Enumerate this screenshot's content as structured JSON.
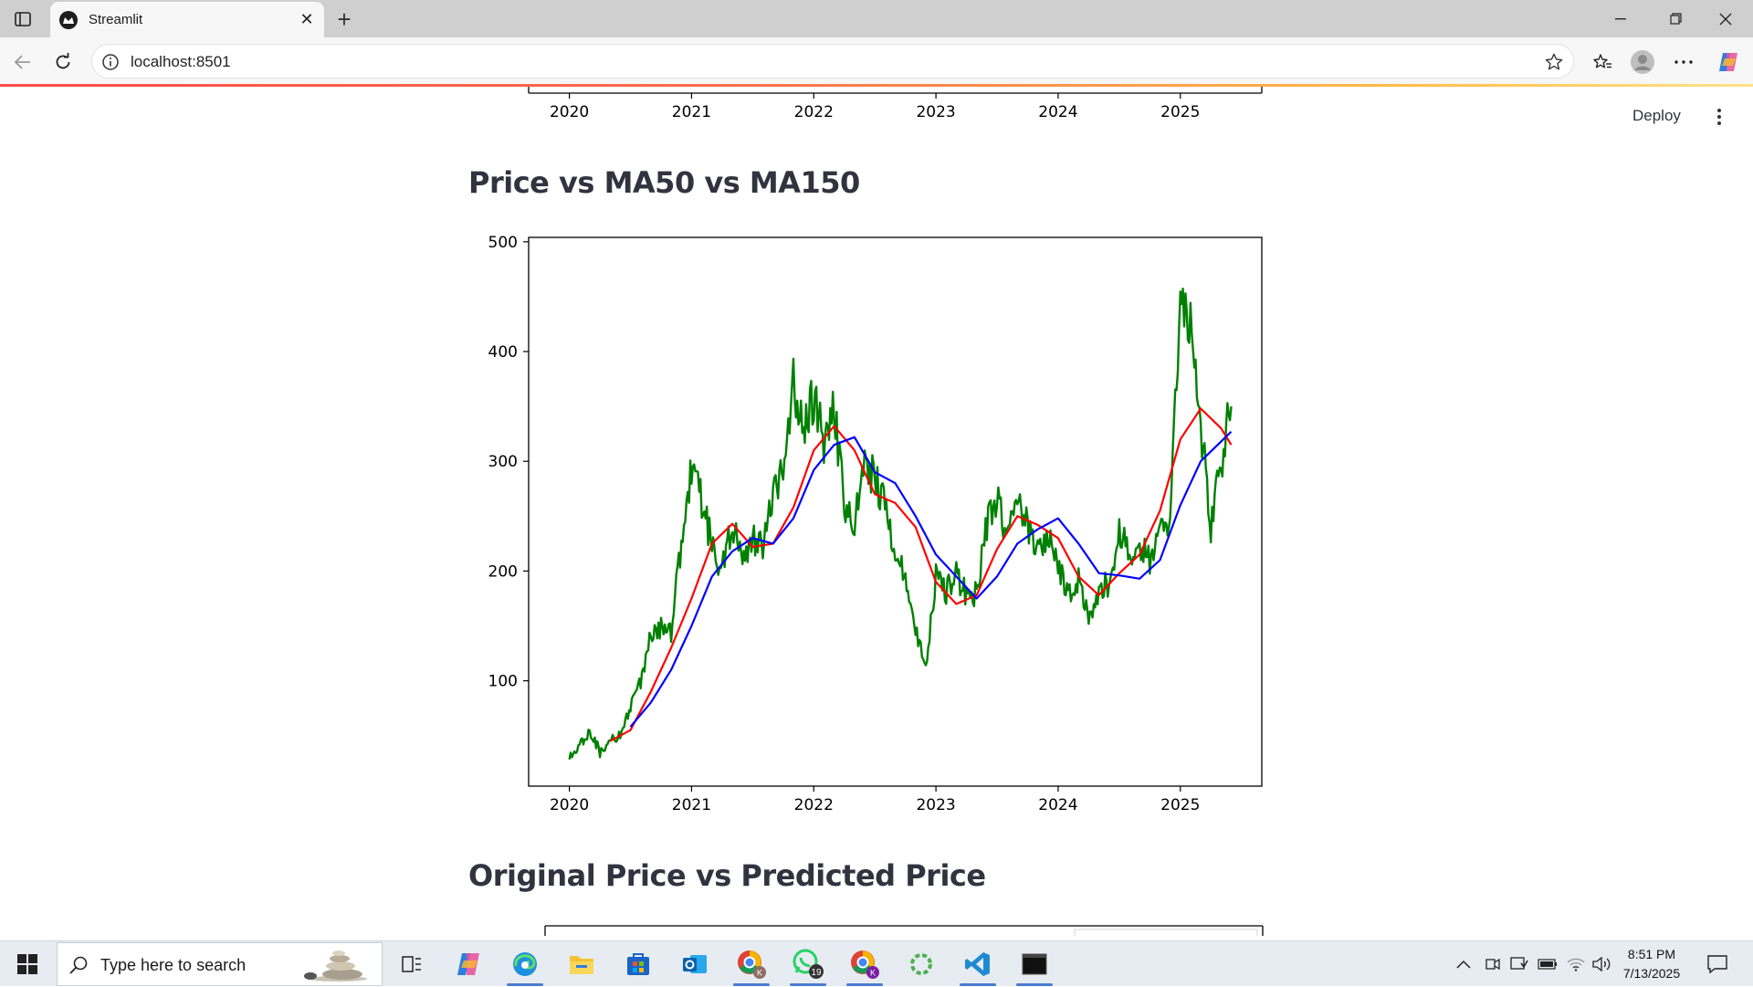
{
  "browser": {
    "tab_title": "Streamlit",
    "url": "localhost:8501"
  },
  "app": {
    "deploy_label": "Deploy",
    "heading_ma": "Price vs MA50 vs MA150",
    "heading_pred": "Original Price vs Predicted Price"
  },
  "top_chart_partial": {
    "x_ticks": [
      "2020",
      "2021",
      "2022",
      "2023",
      "2024",
      "2025"
    ]
  },
  "chart_data": {
    "type": "line",
    "title": "",
    "xlabel": "",
    "ylabel": "",
    "x_ticks": [
      "2020",
      "2021",
      "2022",
      "2023",
      "2024",
      "2025"
    ],
    "y_ticks": [
      100,
      200,
      300,
      400,
      500
    ],
    "xlim": [
      "2019-09",
      "2025-09"
    ],
    "ylim": [
      4,
      504
    ],
    "grid": false,
    "legend": "none",
    "series": [
      {
        "color": "#008000",
        "x": [
          "2020-01",
          "2020-02",
          "2020-03",
          "2020-04",
          "2020-05",
          "2020-06",
          "2020-07",
          "2020-08",
          "2020-09",
          "2020-10",
          "2020-11",
          "2020-12",
          "2021-01",
          "2021-02",
          "2021-03",
          "2021-04",
          "2021-05",
          "2021-06",
          "2021-07",
          "2021-08",
          "2021-09",
          "2021-10",
          "2021-11",
          "2021-12",
          "2022-01",
          "2022-02",
          "2022-03",
          "2022-04",
          "2022-05",
          "2022-06",
          "2022-07",
          "2022-08",
          "2022-09",
          "2022-10",
          "2022-11",
          "2022-12",
          "2023-01",
          "2023-02",
          "2023-03",
          "2023-04",
          "2023-05",
          "2023-06",
          "2023-07",
          "2023-08",
          "2023-09",
          "2023-10",
          "2023-11",
          "2023-12",
          "2024-01",
          "2024-02",
          "2024-03",
          "2024-04",
          "2024-05",
          "2024-06",
          "2024-07",
          "2024-08",
          "2024-09",
          "2024-10",
          "2024-11",
          "2024-12",
          "2025-01",
          "2025-02",
          "2025-03",
          "2025-04",
          "2025-05",
          "2025-06"
        ],
        "values": [
          30,
          40,
          55,
          35,
          45,
          50,
          75,
          100,
          140,
          150,
          145,
          225,
          290,
          265,
          225,
          200,
          245,
          205,
          230,
          220,
          275,
          290,
          380,
          320,
          360,
          320,
          345,
          260,
          240,
          300,
          285,
          260,
          220,
          190,
          150,
          110,
          195,
          180,
          200,
          175,
          180,
          245,
          270,
          230,
          260,
          240,
          220,
          235,
          205,
          180,
          190,
          155,
          185,
          190,
          240,
          215,
          220,
          210,
          250,
          240,
          460,
          420,
          330,
          240,
          300,
          350
        ],
        "fluctuation_note_omitted": true
      },
      {
        "color": "#ff0000",
        "x": [
          "2020-05",
          "2020-07",
          "2020-09",
          "2020-11",
          "2021-01",
          "2021-03",
          "2021-05",
          "2021-07",
          "2021-09",
          "2021-11",
          "2022-01",
          "2022-03",
          "2022-05",
          "2022-07",
          "2022-09",
          "2022-11",
          "2023-01",
          "2023-03",
          "2023-05",
          "2023-07",
          "2023-09",
          "2023-11",
          "2024-01",
          "2024-03",
          "2024-05",
          "2024-07",
          "2024-09",
          "2024-11",
          "2025-01",
          "2025-03",
          "2025-05",
          "2025-06"
        ],
        "values": [
          45,
          55,
          90,
          130,
          175,
          225,
          243,
          222,
          225,
          258,
          310,
          332,
          310,
          270,
          262,
          240,
          190,
          170,
          178,
          220,
          250,
          242,
          230,
          195,
          178,
          198,
          215,
          255,
          320,
          348,
          330,
          315
        ]
      },
      {
        "color": "#0000ff",
        "x": [
          "2020-07",
          "2020-09",
          "2020-11",
          "2021-01",
          "2021-03",
          "2021-05",
          "2021-07",
          "2021-09",
          "2021-11",
          "2022-01",
          "2022-03",
          "2022-05",
          "2022-07",
          "2022-09",
          "2022-11",
          "2023-01",
          "2023-03",
          "2023-05",
          "2023-07",
          "2023-09",
          "2023-11",
          "2024-01",
          "2024-03",
          "2024-05",
          "2024-07",
          "2024-09",
          "2024-11",
          "2025-01",
          "2025-03",
          "2025-05",
          "2025-06"
        ],
        "values": [
          58,
          80,
          110,
          150,
          195,
          218,
          230,
          225,
          248,
          292,
          315,
          322,
          290,
          280,
          250,
          215,
          195,
          175,
          195,
          225,
          238,
          248,
          225,
          198,
          196,
          193,
          210,
          260,
          300,
          318,
          327
        ]
      }
    ]
  },
  "taskbar": {
    "search_placeholder": "Type here to search",
    "time": "8:51 PM",
    "date": "7/13/2025",
    "whatsapp_badge": "19",
    "chrome_profile_1": "K",
    "chrome_profile_2": "K"
  }
}
